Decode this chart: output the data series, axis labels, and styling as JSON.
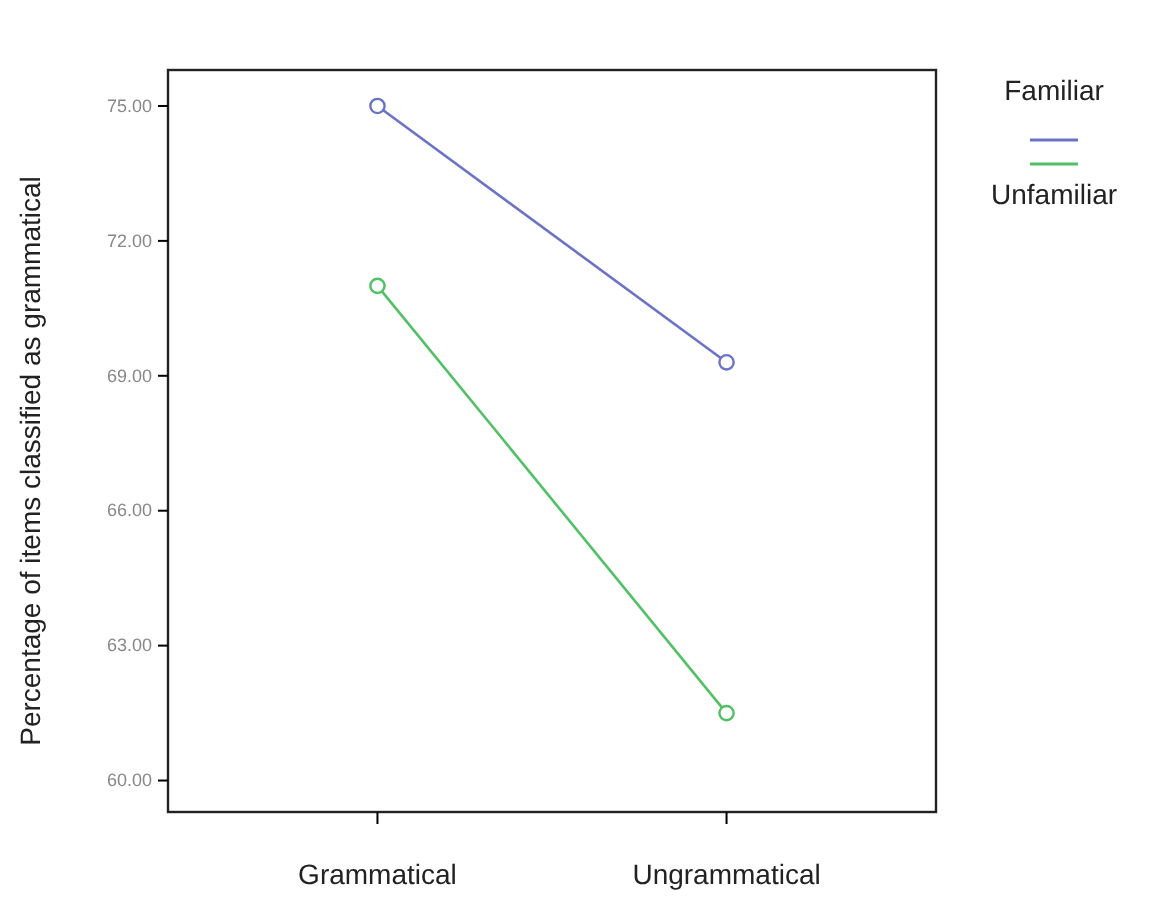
{
  "chart_data": {
    "type": "line",
    "ylabel": "Percentage of items classified as grammatical",
    "categories": [
      "Grammatical",
      "Ungrammatical"
    ],
    "series": [
      {
        "name": "Familiar",
        "color": "#6b73c6",
        "values": [
          75.0,
          69.3
        ]
      },
      {
        "name": "Unfamiliar",
        "color": "#52c065",
        "values": [
          71.0,
          61.5
        ]
      }
    ],
    "ylim": [
      59.3,
      75.8
    ],
    "yticks": [
      {
        "value": 60,
        "label": "60.00"
      },
      {
        "value": 63,
        "label": "63.00"
      },
      {
        "value": 66,
        "label": "66.00"
      },
      {
        "value": 69,
        "label": "69.00"
      },
      {
        "value": 72,
        "label": "72.00"
      },
      {
        "value": 75,
        "label": "75.00"
      }
    ],
    "marker": "circle",
    "line_style": "solid",
    "legend": "right",
    "grid": false
  }
}
